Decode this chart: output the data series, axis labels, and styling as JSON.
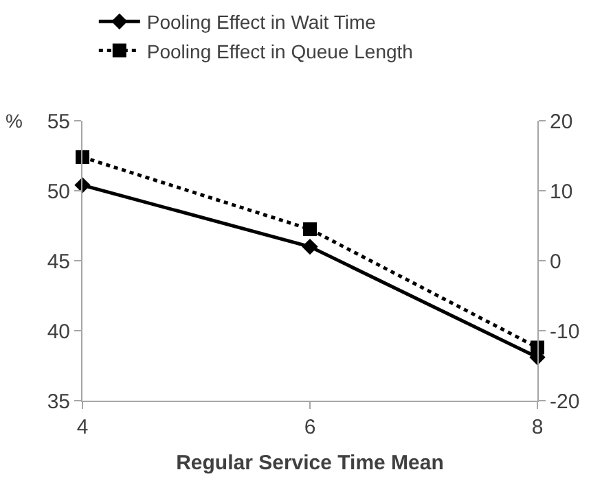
{
  "chart_data": {
    "type": "line",
    "xlabel": "Regular Service Time Mean",
    "ylabel": "%",
    "x": [
      4,
      6,
      8
    ],
    "series": [
      {
        "name": "Pooling Effect in Wait Time",
        "color": "#000000",
        "values": [
          50.4,
          46.0,
          38.1
        ],
        "marker": "diamond",
        "line_style": "solid"
      },
      {
        "name": "Pooling Effect in Queue Length",
        "color": "#000000",
        "values": [
          14.8,
          4.5,
          -12.4
        ],
        "marker": "square",
        "line_style": "dotted",
        "axis": "y2"
      }
    ],
    "xlim": [
      4,
      8
    ],
    "xticks": [
      4,
      6,
      8
    ],
    "ylim": [
      35,
      55
    ],
    "yticks": [
      35,
      40,
      45,
      50,
      55
    ],
    "y2lim": [
      -20,
      20
    ],
    "y2ticks": [
      -20,
      -10,
      0,
      10,
      20
    ],
    "grid": false,
    "legend": "top"
  }
}
